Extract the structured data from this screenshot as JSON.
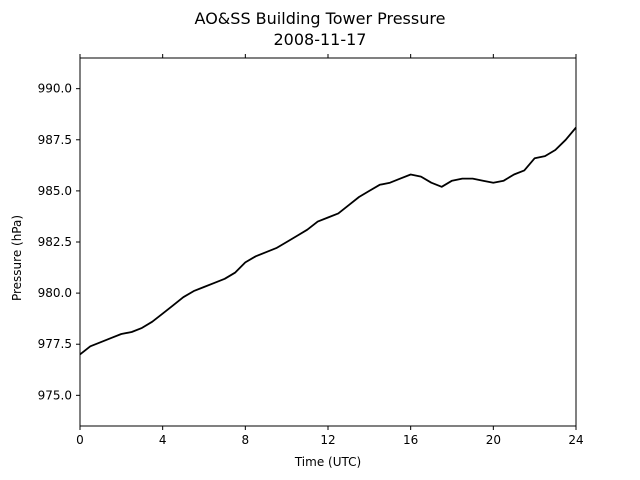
{
  "chart_data": {
    "type": "line",
    "title": "AO&SS Building Tower Pressure",
    "subtitle": "2008-11-17",
    "xlabel": "Time (UTC)",
    "ylabel": "Pressure (hPa)",
    "xlim": [
      0,
      24
    ],
    "ylim": [
      973.5,
      991.5
    ],
    "xticks": [
      0,
      4,
      8,
      12,
      16,
      20,
      24
    ],
    "xtick_labels": [
      "0",
      "4",
      "8",
      "12",
      "16",
      "20",
      "24"
    ],
    "yticks": [
      975.0,
      977.5,
      980.0,
      982.5,
      985.0,
      987.5,
      990.0
    ],
    "ytick_labels": [
      "975.0",
      "977.5",
      "980.0",
      "982.5",
      "985.0",
      "987.5",
      "990.0"
    ],
    "grid": false,
    "line_color": "#000000",
    "series": [
      {
        "x": [
          0,
          0.5,
          1,
          1.5,
          2,
          2.5,
          3,
          3.5,
          4,
          4.5,
          5,
          5.5,
          6,
          6.5,
          7,
          7.5,
          8,
          8.5,
          9,
          9.5,
          10,
          10.5,
          11,
          11.5,
          12,
          12.5,
          13,
          13.5,
          14,
          14.5,
          15,
          15.5,
          16,
          16.5,
          17,
          17.5,
          18,
          18.5,
          19,
          19.5,
          20,
          20.5,
          21,
          21.5,
          22,
          22.5,
          23,
          23.5,
          24
        ],
        "y": [
          977.0,
          977.4,
          977.6,
          977.8,
          978.0,
          978.1,
          978.3,
          978.6,
          979.0,
          979.4,
          979.8,
          980.1,
          980.3,
          980.5,
          980.7,
          981.0,
          981.5,
          981.8,
          982.0,
          982.2,
          982.5,
          982.8,
          983.1,
          983.5,
          983.7,
          983.9,
          984.3,
          984.7,
          985.0,
          985.3,
          985.4,
          985.6,
          985.8,
          985.7,
          985.4,
          985.2,
          985.5,
          985.6,
          985.6,
          985.5,
          985.4,
          985.5,
          985.8,
          986.0,
          986.6,
          986.7,
          987.0,
          987.5,
          988.1
        ]
      }
    ]
  }
}
